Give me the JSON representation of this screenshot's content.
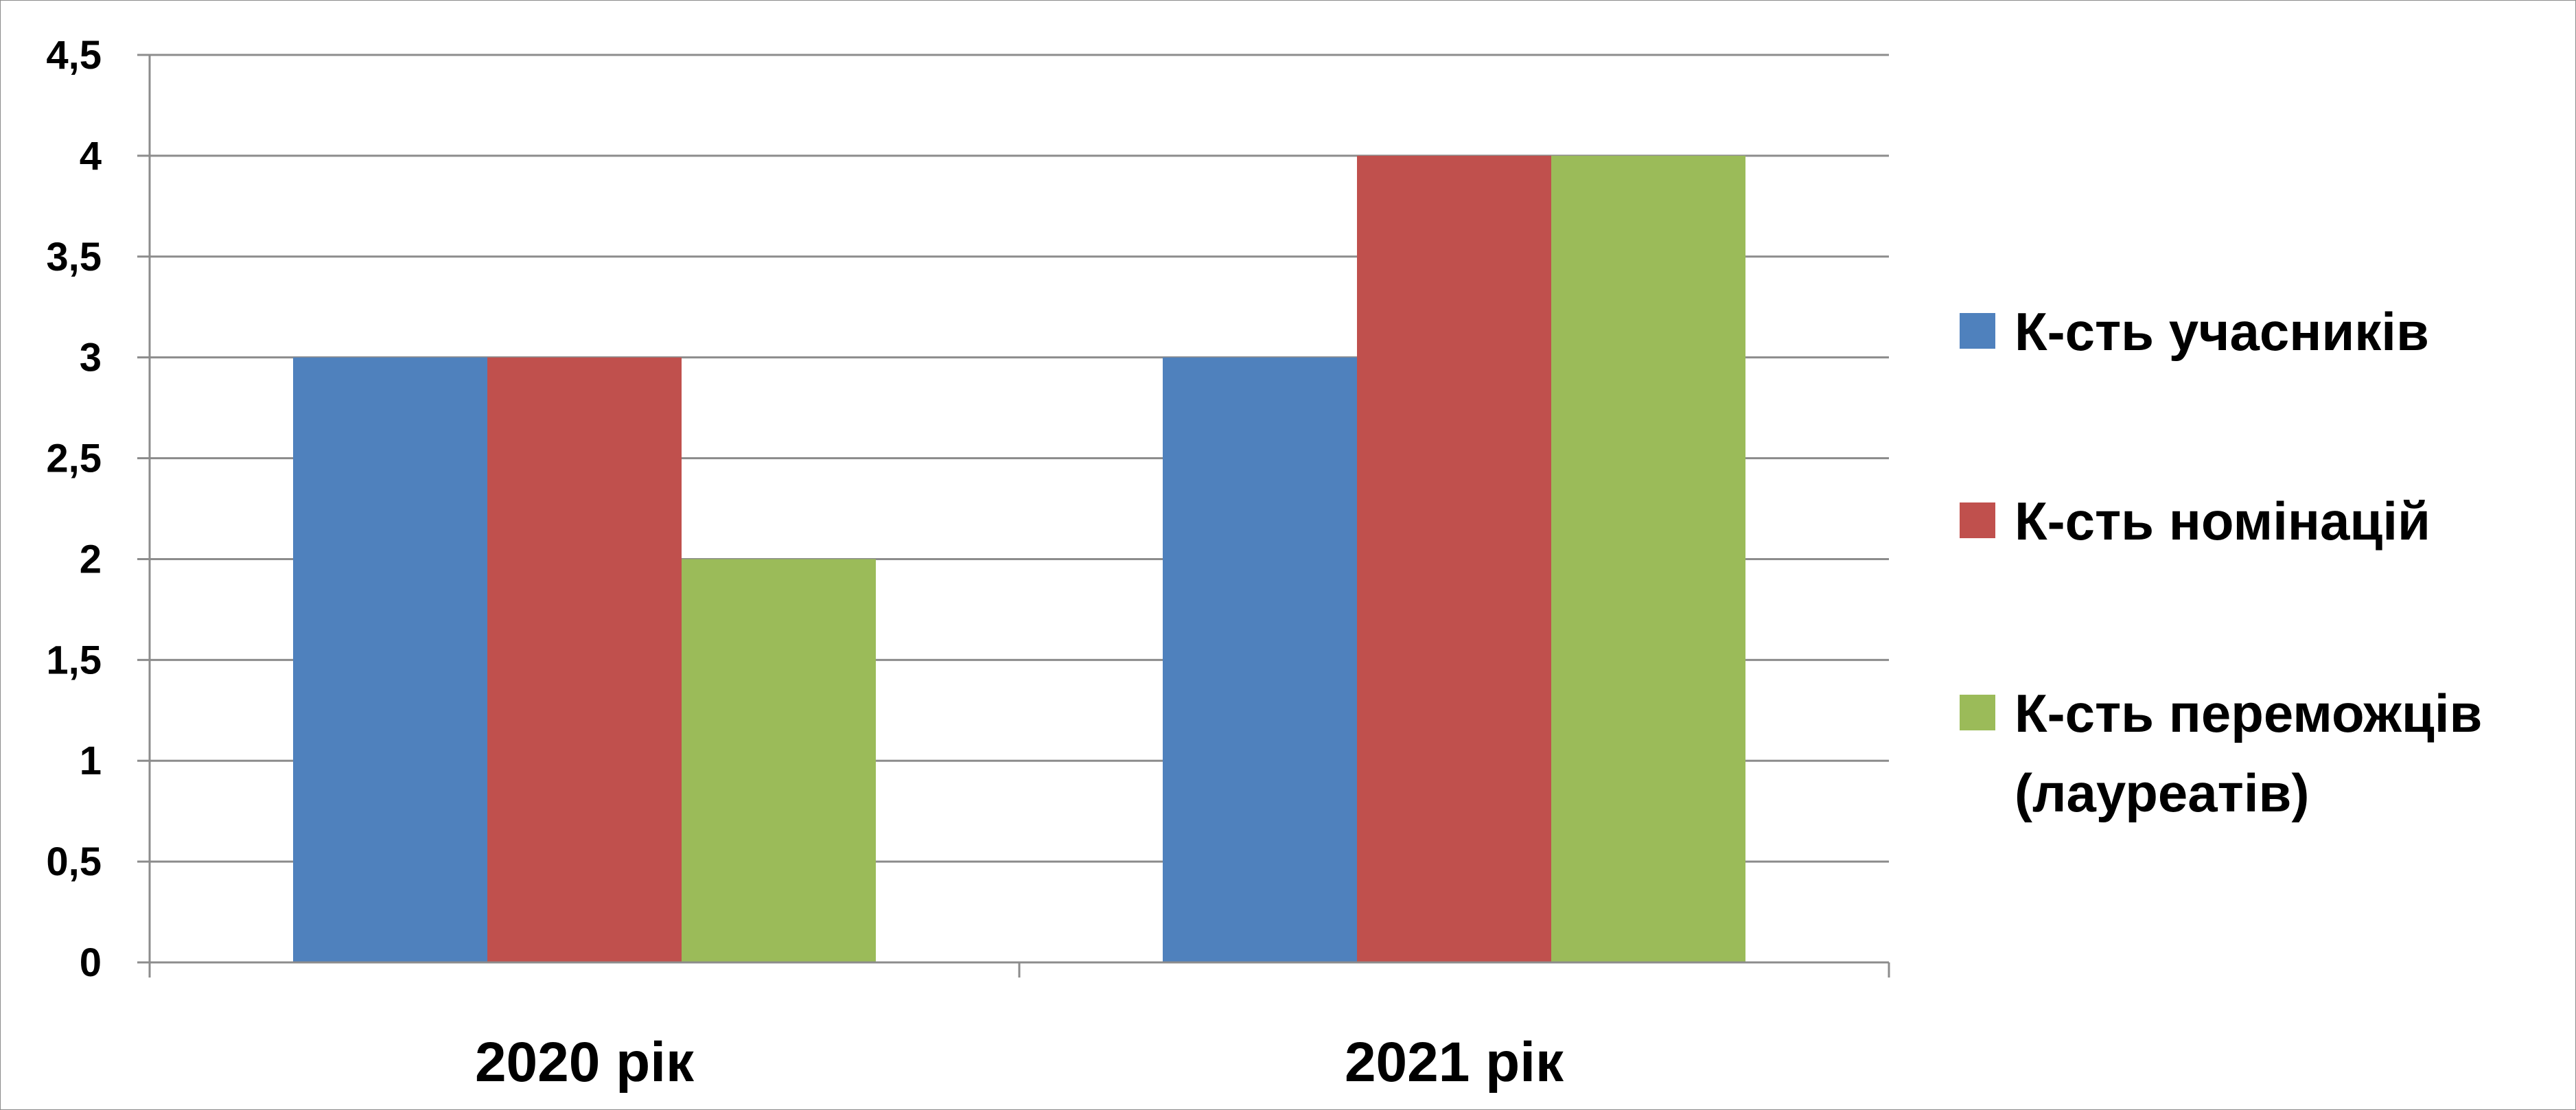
{
  "chart_data": {
    "type": "bar",
    "categories": [
      "2020 рік",
      "2021 рік"
    ],
    "series": [
      {
        "name": "К-сть учасників",
        "values": [
          3,
          3
        ],
        "color": "#4f81bd"
      },
      {
        "name": "К-сть номінацій",
        "values": [
          3,
          4
        ],
        "color": "#c0504d"
      },
      {
        "name": "К-сть переможців (лауреатів)",
        "values": [
          2,
          4
        ],
        "color": "#9bbb59"
      }
    ],
    "ylim": [
      0,
      4.5
    ],
    "yticks": [
      0,
      0.5,
      1,
      1.5,
      2,
      2.5,
      3,
      3.5,
      4,
      4.5
    ],
    "ytick_labels": [
      "0",
      "0,5",
      "1",
      "1,5",
      "2",
      "2,5",
      "3",
      "3,5",
      "4",
      "4,5"
    ],
    "grid": true,
    "legend_position": "right",
    "legend_lines": [
      [
        "К-сть учасників"
      ],
      [
        "К-сть номінацій"
      ],
      [
        "К-сть переможців",
        "(лауреатів)"
      ]
    ],
    "title": "",
    "xlabel": "",
    "ylabel": ""
  }
}
